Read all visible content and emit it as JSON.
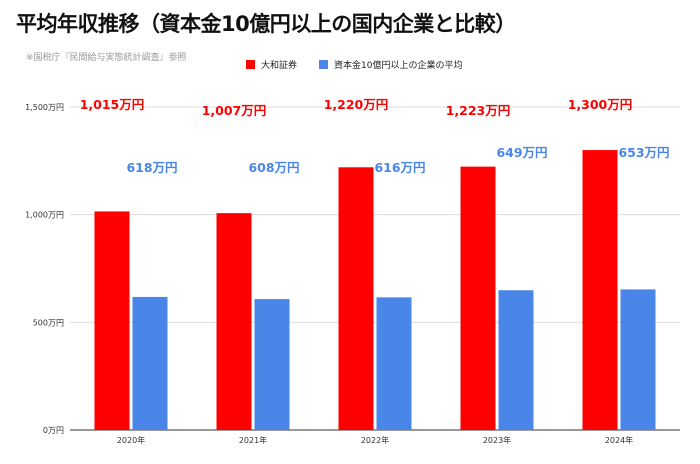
{
  "title": "平均年収推移（資本金10億円以上の国内企業と比較）",
  "source": "※国税庁『民間給与実態統計調査』参照",
  "colors": {
    "series1": "#ff0000",
    "series2": "#4a86e8",
    "label1": "#ff0000",
    "label2": "#4a86e8",
    "grid": "#dddddd",
    "axis": "#333333"
  },
  "chart_data": {
    "type": "bar",
    "categories": [
      "2020年",
      "2021年",
      "2022年",
      "2023年",
      "2024年"
    ],
    "series": [
      {
        "name": "大和証券",
        "values": [
          1015,
          1007,
          1220,
          1223,
          1300
        ],
        "labels": [
          "1,015万円",
          "1,007万円",
          "1,220万円",
          "1,223万円",
          "1,300万円"
        ]
      },
      {
        "name": "資本金10億円以上の企業の平均",
        "values": [
          618,
          608,
          616,
          649,
          653
        ],
        "labels": [
          "618万円",
          "608万円",
          "616万円",
          "649万円",
          "653万円"
        ]
      }
    ],
    "yticks": [
      0,
      500,
      1000,
      1500
    ],
    "ytick_labels": [
      "0万円",
      "500万円",
      "1,000万円",
      "1,500万円"
    ],
    "ylim": [
      0,
      1500
    ],
    "grid": true,
    "legend_position": "top"
  }
}
